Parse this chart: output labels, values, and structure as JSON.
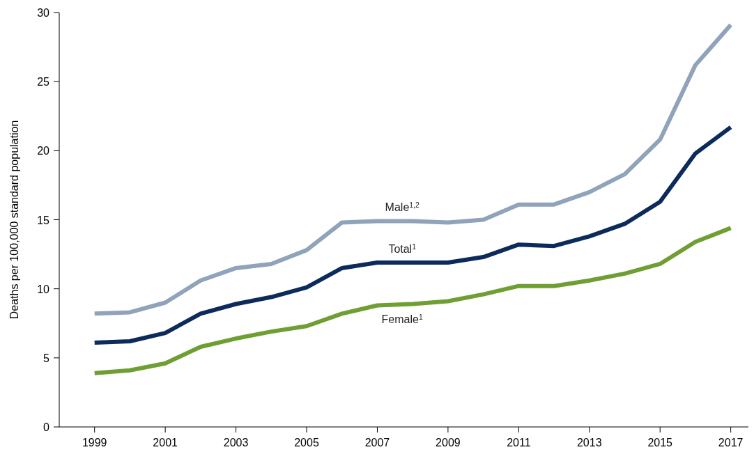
{
  "chart_data": {
    "type": "line",
    "ylabel": "Deaths per 100,000 standard population",
    "x": [
      1999,
      2000,
      2001,
      2002,
      2003,
      2004,
      2005,
      2006,
      2007,
      2008,
      2009,
      2010,
      2011,
      2012,
      2013,
      2014,
      2015,
      2016,
      2017
    ],
    "xlim": [
      1998,
      2017.5
    ],
    "xticks": [
      1999,
      2001,
      2003,
      2005,
      2007,
      2009,
      2011,
      2013,
      2015,
      2017
    ],
    "ylim": [
      0,
      30
    ],
    "yticks": [
      0,
      5,
      10,
      15,
      20,
      25,
      30
    ],
    "grid": false,
    "marker": "none",
    "line_style": "solid",
    "series": [
      {
        "name": "Male$^{1,2}$",
        "color": "#8fa3ba",
        "values": [
          8.2,
          8.3,
          9.0,
          10.6,
          11.5,
          11.8,
          12.8,
          14.8,
          14.9,
          14.9,
          14.8,
          15.0,
          16.1,
          16.1,
          17.0,
          18.3,
          20.8,
          26.2,
          29.1
        ]
      },
      {
        "name": "Total$^{1}$",
        "color": "#0c2a5b",
        "values": [
          6.1,
          6.2,
          6.8,
          8.2,
          8.9,
          9.4,
          10.1,
          11.5,
          11.9,
          11.9,
          11.9,
          12.3,
          13.2,
          13.1,
          13.8,
          14.7,
          16.3,
          19.8,
          21.7
        ]
      },
      {
        "name": "Female$^{1}$",
        "color": "#6f9f33",
        "values": [
          3.9,
          4.1,
          4.6,
          5.8,
          6.4,
          6.9,
          7.3,
          8.2,
          8.8,
          8.9,
          9.1,
          9.6,
          10.2,
          10.2,
          10.6,
          11.1,
          11.8,
          13.4,
          14.4
        ]
      }
    ]
  }
}
